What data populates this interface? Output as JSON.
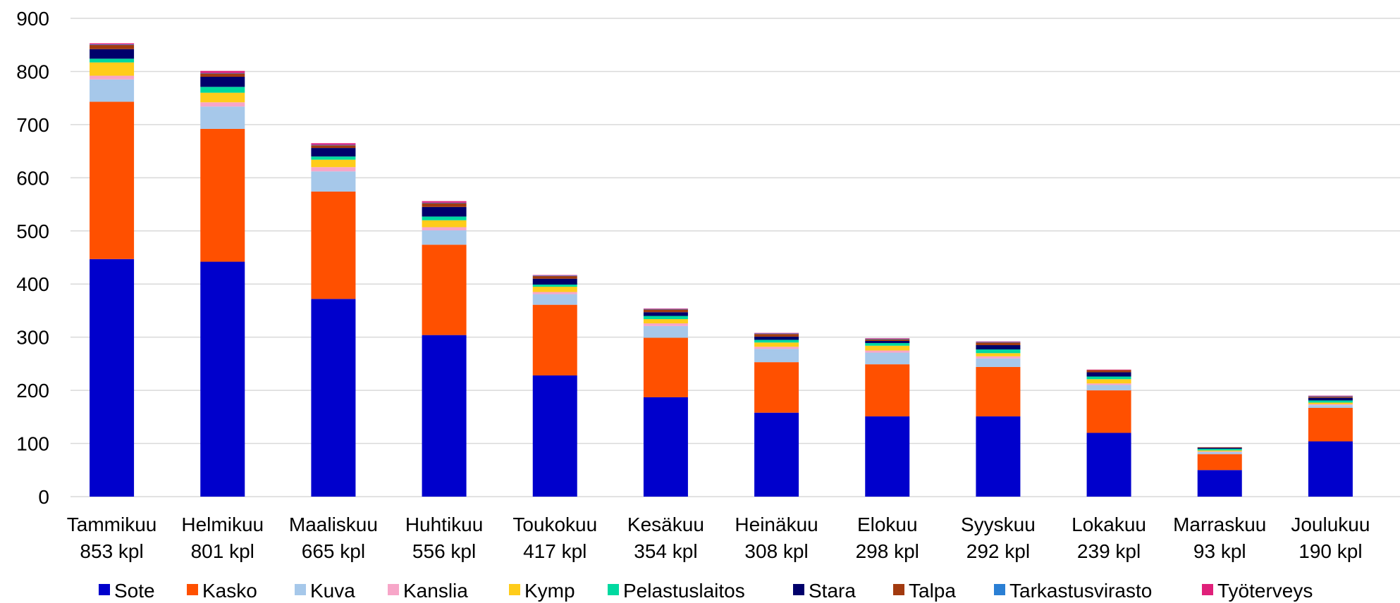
{
  "chart_data": {
    "type": "bar",
    "stacked": true,
    "title": "",
    "xlabel": "",
    "ylabel": "",
    "ylim": [
      0,
      900
    ],
    "yticks": [
      0,
      100,
      200,
      300,
      400,
      500,
      600,
      700,
      800,
      900
    ],
    "grid": true,
    "legend_position": "bottom",
    "categories": [
      [
        "Tammikuu",
        "853 kpl"
      ],
      [
        "Helmikuu",
        "801 kpl"
      ],
      [
        "Maaliskuu",
        "665 kpl"
      ],
      [
        "Huhtikuu",
        "556 kpl"
      ],
      [
        "Toukokuu",
        "417 kpl"
      ],
      [
        "Kesäkuu",
        "354 kpl"
      ],
      [
        "Heinäkuu",
        "308 kpl"
      ],
      [
        "Elokuu",
        "298 kpl"
      ],
      [
        "Syyskuu",
        "292 kpl"
      ],
      [
        "Lokakuu",
        "239 kpl"
      ],
      [
        "Marraskuu",
        "93 kpl"
      ],
      [
        "Joulukuu",
        "190 kpl"
      ]
    ],
    "series": [
      {
        "name": "Sote",
        "color": "#0000cc",
        "values": [
          447,
          442,
          372,
          304,
          228,
          187,
          158,
          151,
          151,
          120,
          50,
          104
        ]
      },
      {
        "name": "Kasko",
        "color": "#ff5000",
        "values": [
          296,
          250,
          202,
          170,
          133,
          112,
          95,
          98,
          93,
          80,
          30,
          63
        ]
      },
      {
        "name": "Kuva",
        "color": "#a6c8ea",
        "values": [
          42,
          42,
          38,
          27,
          20,
          22,
          25,
          22,
          16,
          10,
          4,
          5
        ]
      },
      {
        "name": "Kanslia",
        "color": "#f7a6c8",
        "values": [
          7,
          8,
          8,
          6,
          4,
          5,
          4,
          4,
          4,
          3,
          1,
          2
        ]
      },
      {
        "name": "Kymp",
        "color": "#ffcc1a",
        "values": [
          25,
          18,
          14,
          13,
          10,
          8,
          8,
          9,
          6,
          8,
          2,
          3
        ]
      },
      {
        "name": "Pelastuslaitos",
        "color": "#00d9a0",
        "values": [
          7,
          11,
          6,
          7,
          4,
          6,
          5,
          5,
          7,
          5,
          3,
          4
        ]
      },
      {
        "name": "Stara",
        "color": "#00006b",
        "values": [
          18,
          19,
          16,
          18,
          11,
          7,
          6,
          4,
          8,
          8,
          2,
          5
        ]
      },
      {
        "name": "Talpa",
        "color": "#a23a0f",
        "values": [
          8,
          6,
          5,
          7,
          5,
          5,
          5,
          3,
          5,
          4,
          1,
          2
        ]
      },
      {
        "name": "Tarkastusvirasto",
        "color": "#2a7fd4",
        "values": [
          1,
          1,
          1,
          1,
          1,
          1,
          1,
          1,
          1,
          0,
          0,
          1
        ]
      },
      {
        "name": "Työterveys",
        "color": "#e0207a",
        "values": [
          2,
          4,
          3,
          3,
          1,
          1,
          1,
          1,
          1,
          1,
          0,
          1
        ]
      }
    ]
  }
}
